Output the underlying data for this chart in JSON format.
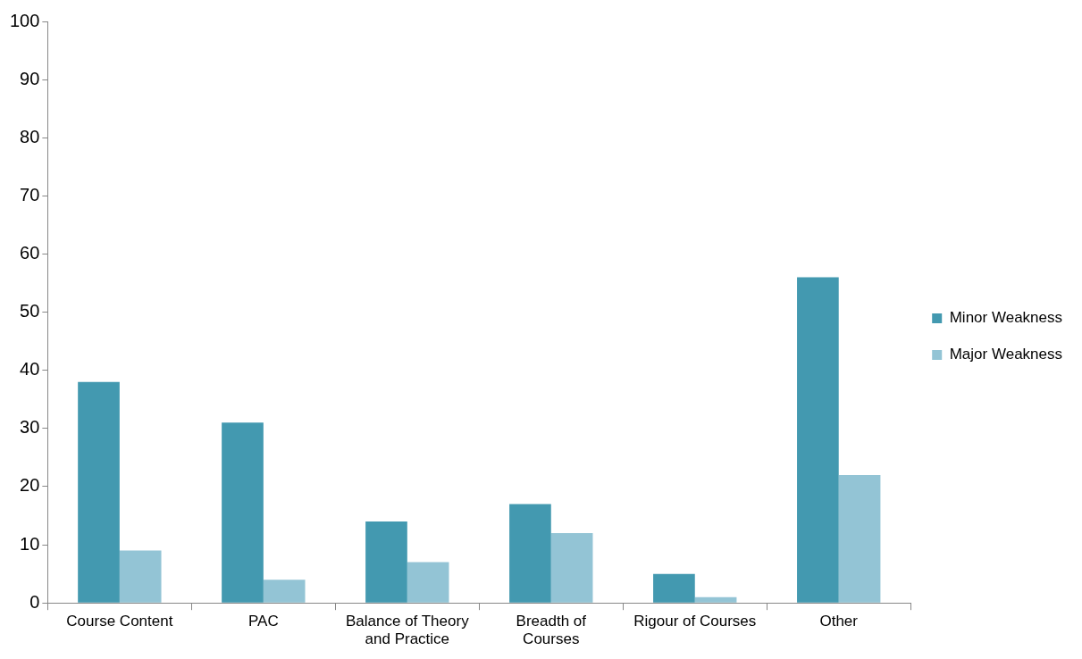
{
  "chart_data": {
    "type": "bar",
    "categories": [
      "Course Content",
      "PAC",
      "Balance of Theory and Practice",
      "Breadth of Courses",
      "Rigour of Courses",
      "Other"
    ],
    "series": [
      {
        "name": "Minor Weakness",
        "color": "#4399b0",
        "values": [
          38,
          31,
          14,
          17,
          5,
          56
        ]
      },
      {
        "name": "Major Weakness",
        "color": "#93c4d5",
        "values": [
          9,
          4,
          7,
          12,
          1,
          22
        ]
      }
    ],
    "ylim": [
      0,
      100
    ],
    "yticks": [
      0,
      10,
      20,
      30,
      40,
      50,
      60,
      70,
      80,
      90,
      100
    ],
    "grid": false,
    "legend": "right"
  }
}
